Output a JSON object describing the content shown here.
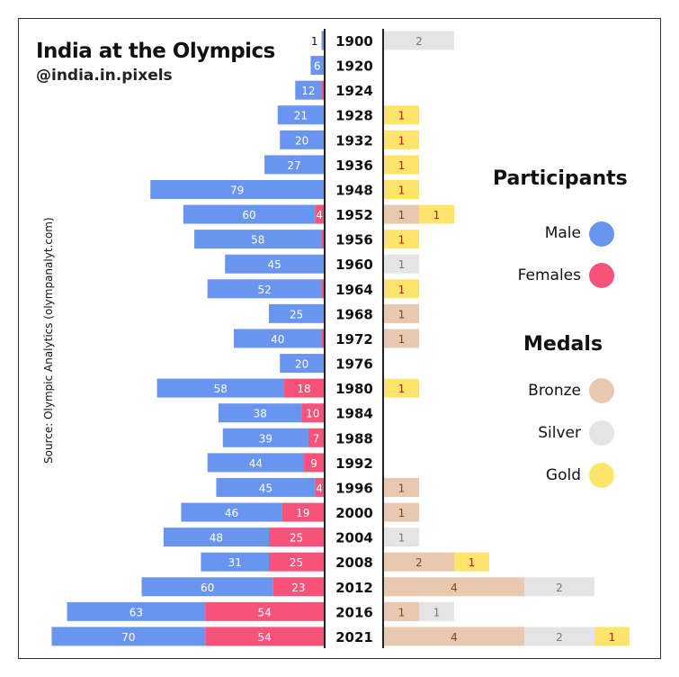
{
  "title": "India at the Olympics",
  "handle": "@india.in.pixels",
  "source": "Source: Olympic Analytics (olympanalyt.com)",
  "legend": {
    "participants_heading": "Participants",
    "male": "Male",
    "female": "Females",
    "medals_heading": "Medals",
    "bronze": "Bronze",
    "silver": "Silver",
    "gold": "Gold"
  },
  "colors": {
    "male": "#6a95ef",
    "female": "#f5537a",
    "bronze": "#e8c8b0",
    "silver": "#e4e4e4",
    "gold": "#fde46a"
  },
  "chart_data": {
    "type": "bar",
    "orientation": "horizontal",
    "categories": [
      "1900",
      "1920",
      "1924",
      "1928",
      "1932",
      "1936",
      "1948",
      "1952",
      "1956",
      "1960",
      "1964",
      "1968",
      "1972",
      "1976",
      "1980",
      "1984",
      "1988",
      "1992",
      "1996",
      "2000",
      "2004",
      "2008",
      "2012",
      "2016",
      "2021"
    ],
    "participants": [
      {
        "name": "Male",
        "values": [
          1,
          6,
          12,
          21,
          20,
          27,
          79,
          60,
          58,
          45,
          52,
          25,
          40,
          20,
          58,
          38,
          39,
          44,
          45,
          46,
          48,
          31,
          60,
          63,
          70
        ]
      },
      {
        "name": "Females",
        "values": [
          0,
          0,
          1,
          0,
          0,
          0,
          0,
          4,
          1,
          0,
          1,
          0,
          1,
          0,
          18,
          10,
          7,
          9,
          4,
          19,
          25,
          25,
          23,
          54,
          54
        ]
      }
    ],
    "medals": [
      {
        "name": "Bronze",
        "values": [
          0,
          0,
          0,
          0,
          0,
          0,
          0,
          1,
          0,
          0,
          0,
          1,
          1,
          0,
          0,
          0,
          0,
          0,
          1,
          1,
          0,
          2,
          4,
          1,
          4
        ]
      },
      {
        "name": "Silver",
        "values": [
          2,
          0,
          0,
          0,
          0,
          0,
          0,
          0,
          0,
          1,
          0,
          0,
          0,
          0,
          0,
          0,
          0,
          0,
          0,
          0,
          1,
          0,
          2,
          1,
          2
        ]
      },
      {
        "name": "Gold",
        "values": [
          0,
          0,
          0,
          1,
          1,
          1,
          1,
          1,
          1,
          0,
          1,
          0,
          0,
          0,
          1,
          0,
          0,
          0,
          0,
          0,
          0,
          1,
          0,
          0,
          1
        ]
      }
    ]
  }
}
